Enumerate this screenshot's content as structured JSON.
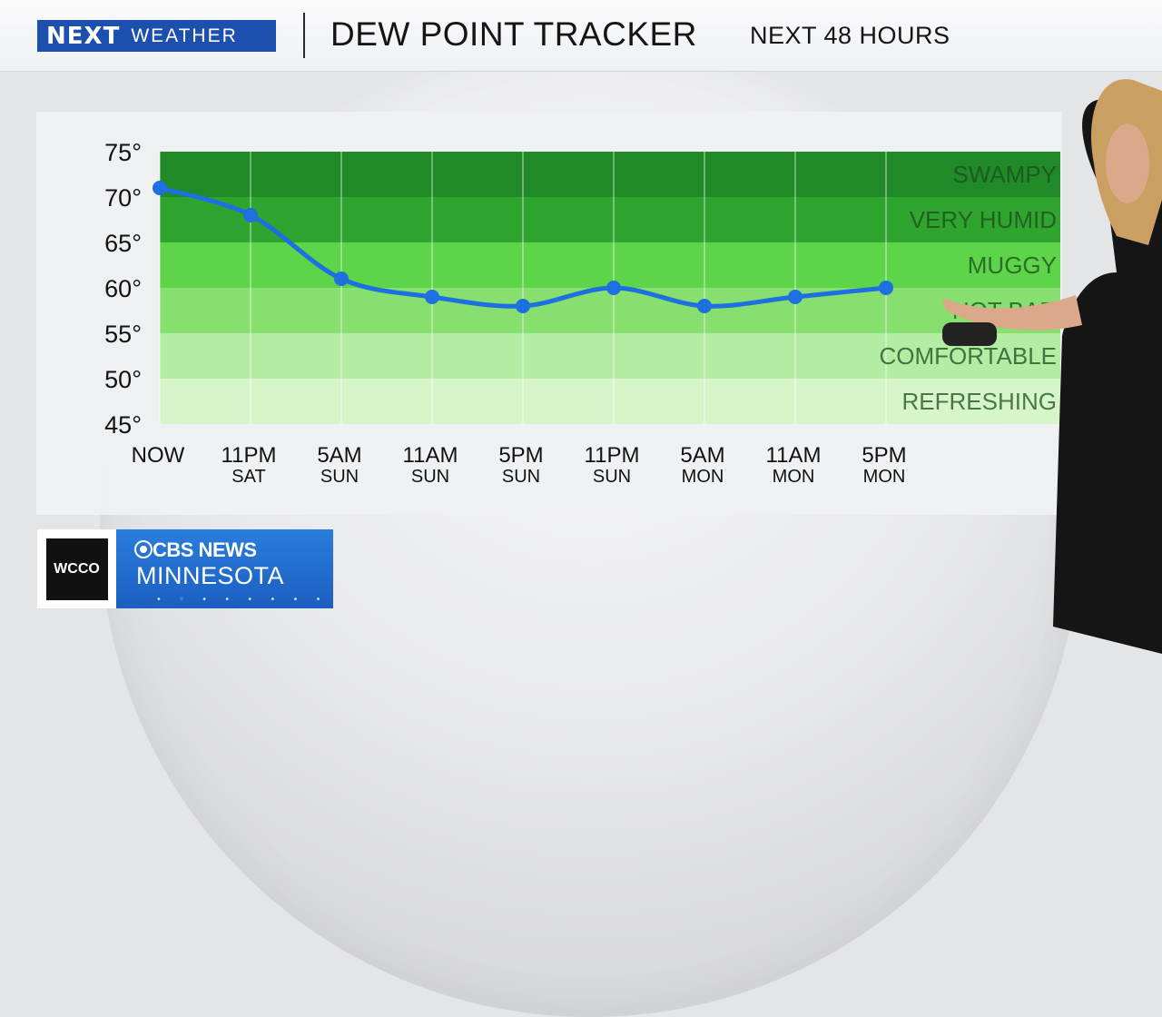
{
  "header": {
    "brand_next": "NEXT",
    "brand_weather": "WEATHER",
    "title": "DEW POINT TRACKER",
    "subtitle": "NEXT 48 HOURS"
  },
  "colors": {
    "header_blue": "#1c4fae",
    "line": "#1e6fe0",
    "band_swampy": "#1f8a27",
    "band_very_humid": "#2fa52f",
    "band_muggy": "#5dd44a",
    "band_not_bad": "#86df6e",
    "band_comfortable": "#b5eca3",
    "band_refreshing": "#d6f5c9"
  },
  "chart_data": {
    "type": "line",
    "title": "DEW POINT TRACKER",
    "subtitle": "NEXT 48 HOURS",
    "xlabel": "",
    "ylabel": "",
    "ylim": [
      45,
      75
    ],
    "y_ticks": [
      "75°",
      "70°",
      "65°",
      "60°",
      "55°",
      "50°",
      "45°"
    ],
    "categories": [
      {
        "time": "NOW",
        "day": ""
      },
      {
        "time": "11PM",
        "day": "SAT"
      },
      {
        "time": "5AM",
        "day": "SUN"
      },
      {
        "time": "11AM",
        "day": "SUN"
      },
      {
        "time": "5PM",
        "day": "SUN"
      },
      {
        "time": "11PM",
        "day": "SUN"
      },
      {
        "time": "5AM",
        "day": "MON"
      },
      {
        "time": "11AM",
        "day": "MON"
      },
      {
        "time": "5PM",
        "day": "MON"
      }
    ],
    "series": [
      {
        "values": [
          71,
          68,
          61,
          59,
          58,
          60,
          58,
          59,
          60
        ]
      }
    ],
    "bands": [
      {
        "label": "SWAMPY",
        "from": 70,
        "to": 75
      },
      {
        "label": "VERY HUMID",
        "from": 65,
        "to": 70
      },
      {
        "label": "MUGGY",
        "from": 60,
        "to": 65
      },
      {
        "label": "NOT BAD",
        "from": 55,
        "to": 60
      },
      {
        "label": "COMFORTABLE",
        "from": 50,
        "to": 55
      },
      {
        "label": "REFRESHING",
        "from": 45,
        "to": 50
      }
    ],
    "grid": true
  },
  "footer": {
    "station": "WCCO",
    "network": "CBS NEWS",
    "region": "MINNESOTA"
  }
}
